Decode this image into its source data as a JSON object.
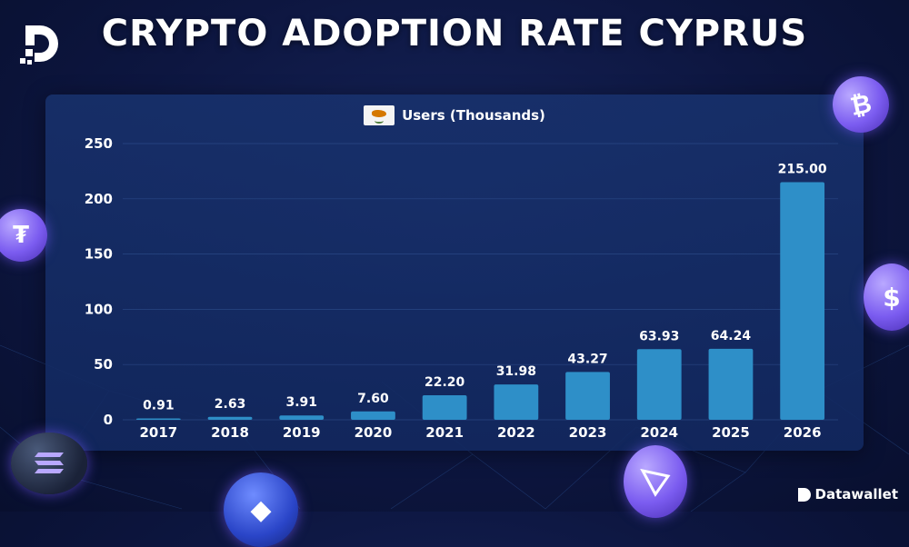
{
  "page": {
    "title": "CRYPTO ADOPTION RATE CYPRUS",
    "brand": "Datawallet"
  },
  "colors": {
    "bar": "#2e8fc8",
    "background": "#0d1640",
    "panel": "#17326c"
  },
  "chart_data": {
    "type": "bar",
    "title": "CRYPTO ADOPTION RATE CYPRUS",
    "legend": "Users (Thousands)",
    "categories": [
      "2017",
      "2018",
      "2019",
      "2020",
      "2021",
      "2022",
      "2023",
      "2024",
      "2025",
      "2026"
    ],
    "series": [
      {
        "name": "Users (Thousands)",
        "values": [
          0.91,
          2.63,
          3.91,
          7.6,
          22.2,
          31.98,
          43.27,
          63.93,
          64.24,
          215.0
        ],
        "labels": [
          "0.91",
          "2.63",
          "3.91",
          "7.60",
          "22.20",
          "31.98",
          "43.27",
          "63.93",
          "64.24",
          "215.00"
        ]
      }
    ],
    "yticks": [
      "0",
      "50",
      "100",
      "150",
      "200",
      "250"
    ],
    "ylim": [
      0,
      250
    ],
    "xlabel": "",
    "ylabel": "",
    "grid": true
  }
}
